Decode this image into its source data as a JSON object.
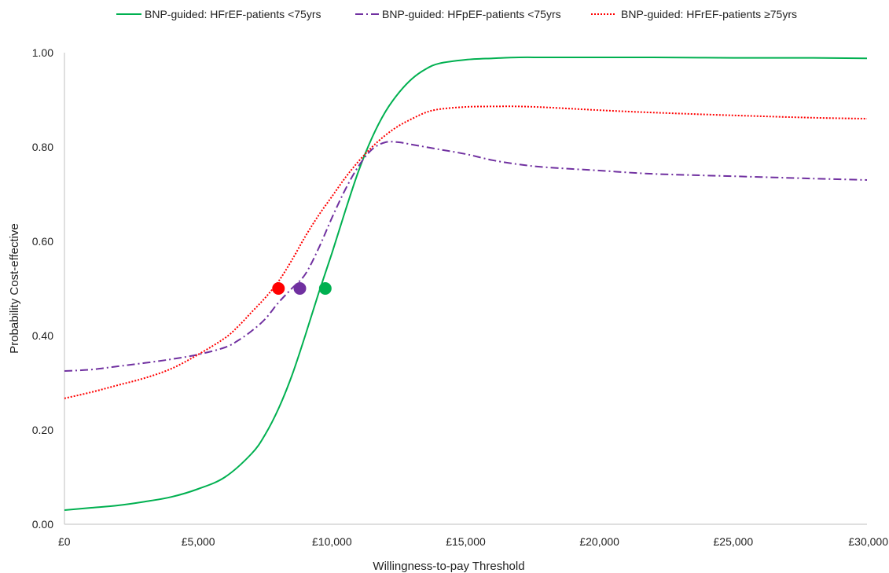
{
  "chart_data": {
    "type": "line",
    "title": "",
    "xlabel": "Willingness-to-pay Threshold",
    "ylabel": "Probability Cost-effective",
    "xlim": [
      0,
      30000
    ],
    "ylim": [
      0,
      1
    ],
    "x_ticks": [
      0,
      5000,
      10000,
      15000,
      20000,
      25000,
      30000
    ],
    "x_tick_labels": [
      "£0",
      "£5,000",
      "£10,000",
      "£15,000",
      "£20,000",
      "£25,000",
      "£30,000"
    ],
    "y_ticks": [
      0,
      0.2,
      0.4,
      0.6,
      0.8,
      1.0
    ],
    "y_tick_labels": [
      "0.00",
      "0.20",
      "0.40",
      "0.60",
      "0.80",
      "1.00"
    ],
    "grid": false,
    "legend_position": "top",
    "series": [
      {
        "name": "BNP-guided: HFrEF-patients <75yrs",
        "color": "#00b050",
        "style": "solid",
        "x": [
          0,
          1000,
          2000,
          3000,
          4000,
          5000,
          6000,
          7000,
          7500,
          8000,
          8500,
          9000,
          9500,
          10000,
          10500,
          11000,
          11500,
          12000,
          12500,
          13000,
          13500,
          14000,
          15000,
          16000,
          17000,
          18000,
          20000,
          22000,
          25000,
          28000,
          30000
        ],
        "values": [
          0.03,
          0.035,
          0.04,
          0.048,
          0.058,
          0.075,
          0.1,
          0.15,
          0.19,
          0.245,
          0.315,
          0.4,
          0.49,
          0.575,
          0.665,
          0.75,
          0.82,
          0.875,
          0.915,
          0.945,
          0.965,
          0.977,
          0.985,
          0.988,
          0.99,
          0.99,
          0.99,
          0.99,
          0.989,
          0.989,
          0.988
        ],
        "marker_at_0.5": 9750
      },
      {
        "name": "BNP-guided: HFpEF-patients <75yrs",
        "color": "#7030a0",
        "style": "dashdot",
        "x": [
          0,
          1000,
          2000,
          3000,
          4000,
          5000,
          6000,
          6500,
          7000,
          7500,
          8000,
          8500,
          9000,
          9500,
          10000,
          10500,
          11000,
          11500,
          12000,
          12500,
          13000,
          14000,
          15000,
          16000,
          17000,
          18000,
          20000,
          22000,
          25000,
          28000,
          30000
        ],
        "values": [
          0.325,
          0.328,
          0.335,
          0.342,
          0.35,
          0.36,
          0.375,
          0.39,
          0.41,
          0.435,
          0.47,
          0.5,
          0.53,
          0.585,
          0.65,
          0.71,
          0.76,
          0.795,
          0.81,
          0.81,
          0.805,
          0.795,
          0.785,
          0.772,
          0.763,
          0.757,
          0.75,
          0.743,
          0.738,
          0.733,
          0.73
        ],
        "marker_at_0.5": 8800
      },
      {
        "name": "BNP-guided: HFrEF-patients ≥75yrs",
        "color": "#ff0000",
        "style": "dotted",
        "x": [
          0,
          1000,
          2000,
          3000,
          4000,
          5000,
          6000,
          6500,
          7000,
          7500,
          8000,
          8500,
          9000,
          9500,
          10000,
          10500,
          11000,
          11500,
          12000,
          12500,
          13000,
          13500,
          14000,
          15000,
          16000,
          17000,
          18000,
          20000,
          22000,
          25000,
          28000,
          30000
        ],
        "values": [
          0.267,
          0.28,
          0.295,
          0.31,
          0.33,
          0.36,
          0.395,
          0.42,
          0.45,
          0.48,
          0.515,
          0.56,
          0.61,
          0.655,
          0.695,
          0.735,
          0.77,
          0.8,
          0.825,
          0.845,
          0.86,
          0.873,
          0.88,
          0.885,
          0.886,
          0.886,
          0.884,
          0.878,
          0.873,
          0.867,
          0.862,
          0.86
        ],
        "marker_at_0.5": 8000
      }
    ]
  }
}
